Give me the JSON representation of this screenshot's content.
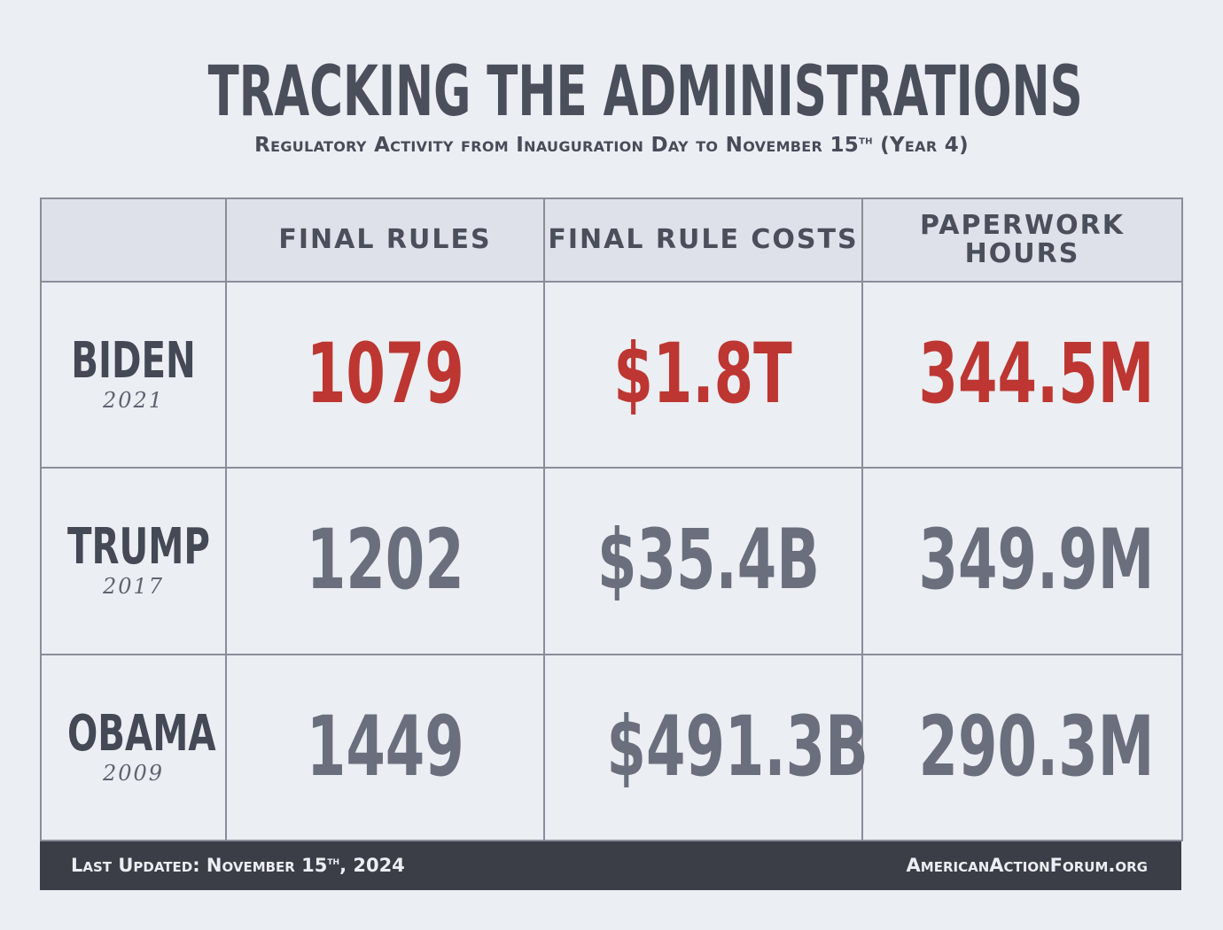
{
  "title": "TRACKING THE ADMINISTRATIONS",
  "subtitle": {
    "before": "Regulatory Activity from Inauguration Day to November 15",
    "sup": "th",
    "after": " (Year 4)"
  },
  "table": {
    "headers": [
      "",
      "FINAL RULES",
      "FINAL RULE COSTS",
      "PAPERWORK HOURS"
    ],
    "rows": [
      {
        "name": "BIDEN",
        "year": "2021",
        "final_rules": "1079",
        "final_rule_costs": "$1.8T",
        "paperwork_hours": "344.5M"
      },
      {
        "name": "TRUMP",
        "year": "2017",
        "final_rules": "1202",
        "final_rule_costs": "$35.4B",
        "paperwork_hours": "349.9M"
      },
      {
        "name": "OBAMA",
        "year": "2009",
        "final_rules": "1449",
        "final_rule_costs": "$491.3B",
        "paperwork_hours": "290.3M"
      }
    ]
  },
  "footer": {
    "updated_before": "Last Updated: November 15",
    "updated_sup": "th",
    "updated_after": ", 2024",
    "site": "AmericanActionForum.org"
  },
  "colors": {
    "highlight": "#bd3631",
    "value": "#6a6e7d",
    "text": "#484b58",
    "background": "#ebeef2",
    "header_background": "#dee1ea",
    "footer_background": "#3b3e46"
  }
}
